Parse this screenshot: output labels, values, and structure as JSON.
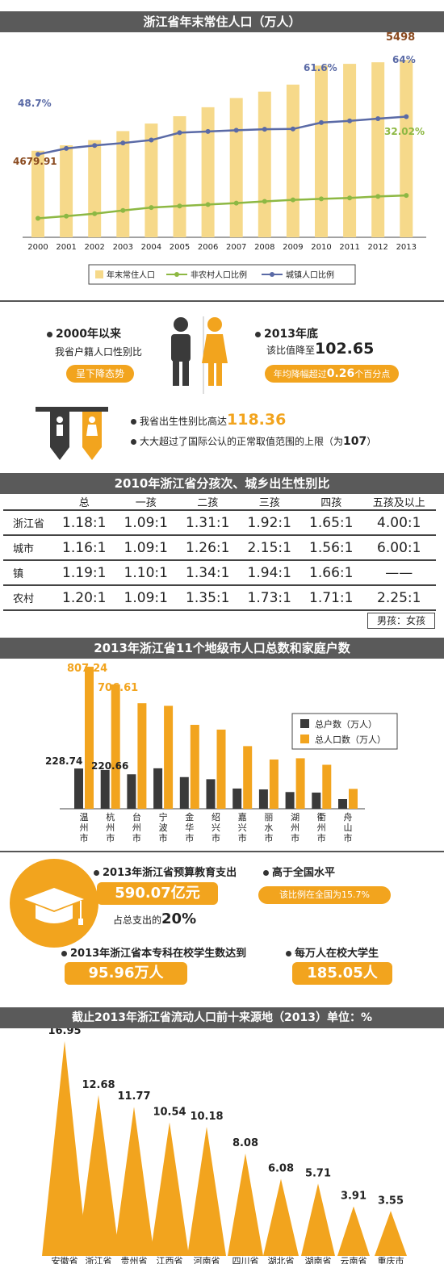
{
  "colors": {
    "bar": "#f6d98a",
    "green": "#8db843",
    "blue": "#5a6aa6",
    "orange": "#f2a41e",
    "dark": "#3a3a3a",
    "brown": "#8a4a1f"
  },
  "chart_data": [
    {
      "type": "bar",
      "title": "浙江省年末常住人口（万人）",
      "categories": [
        "2000",
        "2001",
        "2002",
        "2003",
        "2004",
        "2005",
        "2006",
        "2007",
        "2008",
        "2009",
        "2010",
        "2011",
        "2012",
        "2013"
      ],
      "series": [
        {
          "name": "年末常住人口",
          "values": [
            4679.91,
            4729,
            4776,
            4857,
            4925,
            4991,
            5072,
            5155,
            5212,
            5276,
            5447,
            5463,
            5477,
            5498
          ]
        },
        {
          "name": "非农村人口比例",
          "values": [
            22.7,
            23.6,
            24.6,
            25.9,
            27.1,
            27.7,
            28.3,
            28.9,
            29.6,
            30.2,
            30.6,
            31.0,
            31.6,
            32.02
          ]
        },
        {
          "name": "城镇人口比例",
          "values": [
            48.7,
            51.1,
            52.3,
            53.3,
            54.5,
            57.5,
            58.0,
            58.5,
            58.9,
            59.0,
            61.6,
            62.3,
            63.2,
            64
          ]
        }
      ],
      "annotations": {
        "first_pop": "4679.91",
        "last_pop": "5498",
        "first_urban": "48.7%",
        "urban_2010": "61.6%",
        "last_urban": "64%",
        "last_nonrural": "32.02%"
      },
      "ylim": [
        4000,
        5600
      ]
    },
    {
      "type": "bar",
      "title": "2013年浙江省11个地级市人口总数和家庭户数",
      "categories": [
        "温州市",
        "杭州市",
        "台州市",
        "宁波市",
        "金华市",
        "绍兴市",
        "嘉兴市",
        "丽水市",
        "湖州市",
        "衢州市",
        "舟山市"
      ],
      "series": [
        {
          "name": "总户数（万人）",
          "values": [
            228.74,
            220.66,
            196,
            230,
            180,
            168,
            115,
            110,
            95,
            92,
            55
          ]
        },
        {
          "name": "总人口数（万人）",
          "values": [
            807.24,
            706.61,
            600,
            585,
            477,
            450,
            356,
            280,
            287,
            250,
            113
          ]
        }
      ],
      "labels": {
        "hz_wz": "228.74",
        "hz_hz": "220.66",
        "pop_wz": "807.24",
        "pop_hz": "706.61"
      },
      "ylim": [
        0,
        850
      ]
    },
    {
      "type": "area",
      "title": "截止2013年浙江省流动人口前十来源地（2013）单位：%",
      "categories": [
        "安徽省",
        "浙江省",
        "贵州省",
        "江西省",
        "河南省",
        "四川省",
        "湖北省",
        "湖南省",
        "云南省",
        "重庆市"
      ],
      "values": [
        16.95,
        12.68,
        11.77,
        10.54,
        10.18,
        8.08,
        6.08,
        5.71,
        3.91,
        3.55
      ],
      "value_labels": [
        "16.95",
        "12.68",
        "11.77",
        "10.54",
        "10.18",
        "8.08",
        "6.08",
        "5.71",
        "3.91",
        "3.55"
      ],
      "ylim": [
        0,
        18
      ]
    }
  ],
  "sex": {
    "a_title": "2000年以来",
    "a_text": "我省户籍人口性别比",
    "a_pill": "呈下降态势",
    "b_title": "2013年底",
    "b_text": "该比值降至",
    "b_val": "102.65",
    "b_pill_pre": "年均降幅超过",
    "b_pill_val": "0.26",
    "b_pill_post": "个百分点",
    "c_text": "我省出生性别比高达",
    "c_val": "118.36",
    "d_text": "大大超过了国际公认的正常取值范围的上限（为",
    "d_val": "107",
    "d_post": "）"
  },
  "table": {
    "title": "2010年浙江省分孩次、城乡出生性别比",
    "headers": [
      "",
      "总",
      "一孩",
      "二孩",
      "三孩",
      "四孩",
      "五孩及以上"
    ],
    "rows": [
      [
        "浙江省",
        "1.18:1",
        "1.09:1",
        "1.31:1",
        "1.92:1",
        "1.65:1",
        "4.00:1"
      ],
      [
        "城市",
        "1.16:1",
        "1.09:1",
        "1.26:1",
        "2.15:1",
        "1.56:1",
        "6.00:1"
      ],
      [
        "镇",
        "1.19:1",
        "1.10:1",
        "1.34:1",
        "1.94:1",
        "1.66:1",
        "——"
      ],
      [
        "农村",
        "1.20:1",
        "1.09:1",
        "1.35:1",
        "1.73:1",
        "1.71:1",
        "2.25:1"
      ]
    ],
    "note": "男孩：女孩"
  },
  "edu": {
    "e1_title": "2013年浙江省预算教育支出",
    "e1_val": "590.07亿元",
    "e1_sub": "占总支出的",
    "e1_pct": "20%",
    "e2_title": "高于全国水平",
    "e2_pill": "该比例在全国为15.7%",
    "e3_title": "2013年浙江省本专科在校学生数达到",
    "e3_val": "95.96万人",
    "e4_title": "每万人在校大学生",
    "e4_val": "185.05人"
  }
}
